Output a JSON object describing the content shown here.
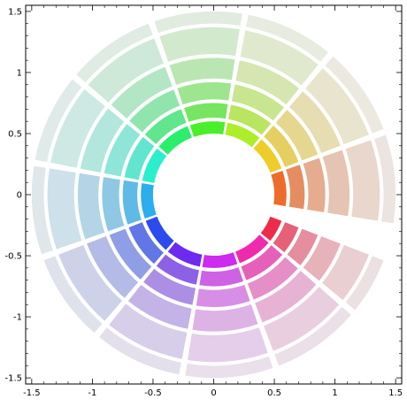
{
  "chart_data": {
    "type": "polar-wedge",
    "xlim": [
      -1.55,
      1.55
    ],
    "ylim": [
      -1.55,
      1.55
    ],
    "x_ticks": [
      {
        "value": -1.5,
        "label": "-1.5"
      },
      {
        "value": -1.0,
        "label": "-1"
      },
      {
        "value": -0.5,
        "label": "-0.5"
      },
      {
        "value": 0.0,
        "label": "0"
      },
      {
        "value": 0.5,
        "label": "0.5"
      },
      {
        "value": 1.0,
        "label": "1"
      },
      {
        "value": 1.5,
        "label": "1.5"
      }
    ],
    "y_ticks": [
      {
        "value": 1.5,
        "label": "1.5"
      },
      {
        "value": 1.0,
        "label": "1"
      },
      {
        "value": 0.5,
        "label": "0.5"
      },
      {
        "value": 0.0,
        "label": "0"
      },
      {
        "value": -0.5,
        "label": "-0.5"
      },
      {
        "value": -1.0,
        "label": "-1"
      },
      {
        "value": -1.5,
        "label": "-1.5"
      }
    ],
    "minor_tick_step": 0.1,
    "grid": false,
    "sectors": 12,
    "sector_span_deg": 30,
    "sector_gap_deg": 2,
    "start_angle_deg": 0,
    "end_angle_deg": 340,
    "rings": [
      {
        "r_inner": 0.5,
        "r_outer": 0.6
      },
      {
        "r_inner": 0.63,
        "r_outer": 0.75
      },
      {
        "r_inner": 0.78,
        "r_outer": 0.92
      },
      {
        "r_inner": 0.95,
        "r_outer": 1.12
      },
      {
        "r_inner": 1.15,
        "r_outer": 1.37
      },
      {
        "r_inner": 1.4,
        "r_outer": 1.5
      }
    ],
    "ring_lightness": [
      0.55,
      0.64,
      0.73,
      0.8,
      0.86,
      0.9
    ],
    "ring_saturation": [
      0.85,
      0.72,
      0.62,
      0.5,
      0.38,
      0.22
    ],
    "colors": {
      "gap": "#ffffff",
      "axes": "#000000"
    }
  }
}
